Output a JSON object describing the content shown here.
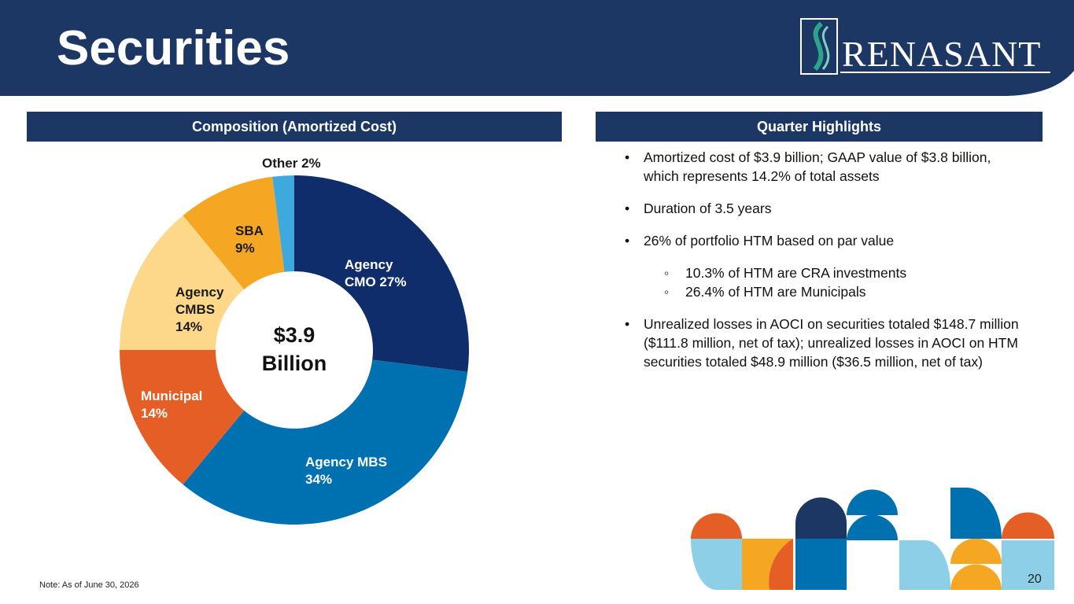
{
  "header": {
    "title": "Securities",
    "logo": "RENASANT"
  },
  "chart_data": {
    "type": "donut",
    "title": "Composition (Amortized Cost)",
    "categories": [
      "Agency CMO",
      "Agency MBS",
      "Municipal",
      "Agency CMBS",
      "SBA",
      "Other"
    ],
    "values": [
      27,
      34,
      14,
      14,
      9,
      2
    ],
    "value_labels": [
      "27%",
      "34%",
      "14%",
      "14%",
      "9%",
      "2%"
    ],
    "colors": [
      "#0f2d6b",
      "#0071b0",
      "#e45e26",
      "#fdd88a",
      "#f5a623",
      "#3ea9dd"
    ],
    "center_label": "$3.9 Billion"
  },
  "highlights": {
    "title": "Quarter Highlights",
    "bullets": [
      "Amortized cost of $3.9 billion; GAAP value of $3.8 billion, which represents 14.2% of total assets",
      "Duration of 3.5 years",
      "26% of portfolio HTM based on par value",
      "Unrealized losses in AOCI on securities totaled $148.7 million ($111.8 million, net of tax); unrealized losses in AOCI on HTM securities totaled $48.9 million ($36.5 million, net of tax)"
    ],
    "sub_bullets": [
      "10.3% of HTM are CRA investments",
      "26.4% of HTM are Municipals"
    ]
  },
  "note": "Note:  As of June 30, 2026",
  "page_number": "20"
}
